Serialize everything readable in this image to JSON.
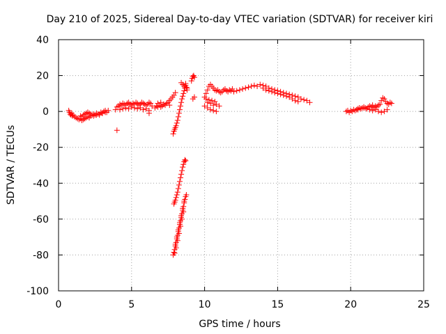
{
  "chart_data": {
    "type": "scatter",
    "title": "Day 210 of 2025, Sidereal Day-to-day VTEC variation (SDTVAR) for receiver kiri",
    "xlabel": "GPS time / hours",
    "ylabel": "SDTVAR / TECUs",
    "xlim": [
      0,
      25
    ],
    "ylim": [
      -100,
      40
    ],
    "xticks": [
      0,
      5,
      10,
      15,
      20,
      25
    ],
    "yticks": [
      40,
      20,
      0,
      -20,
      -40,
      -60,
      -80,
      -100
    ],
    "xtick_labels": [
      "0",
      "5",
      "10",
      "15",
      "20",
      "25"
    ],
    "ytick_labels": [
      "40",
      "20",
      "0",
      "-20",
      "-40",
      "-60",
      "-80",
      "-100"
    ],
    "grid": true,
    "legend": "none",
    "marker": "plus",
    "color": "#ff0000",
    "series": [
      {
        "x": [
          0.7,
          0.75,
          0.8,
          0.85,
          0.9,
          0.95,
          1.0,
          1.1,
          1.2,
          1.3,
          1.4,
          1.5,
          1.6,
          1.7,
          1.8,
          1.9,
          2.0,
          2.1,
          2.2,
          2.3,
          2.4,
          2.5,
          2.6,
          2.7,
          2.8,
          2.9,
          3.0,
          3.1,
          3.2,
          3.3,
          3.4,
          1.5,
          1.6,
          1.7,
          1.8,
          1.9,
          2.0,
          2.1,
          2.2,
          2.4,
          2.6,
          2.8,
          3.0,
          3.2,
          4.0,
          3.9,
          4.0,
          4.1,
          4.2,
          4.3,
          4.4,
          4.5,
          4.6,
          4.7,
          4.8,
          4.9,
          5.0,
          5.1,
          5.2,
          5.3,
          5.4,
          5.5,
          5.6,
          5.7,
          5.8,
          5.9,
          6.0,
          6.1,
          6.2,
          6.3,
          6.4,
          4.2,
          4.4,
          4.6,
          4.8,
          5.0,
          5.2,
          5.4,
          5.6,
          5.8,
          6.0,
          6.2,
          6.2,
          6.6,
          6.7,
          6.8,
          6.9,
          7.0,
          7.1,
          7.2,
          7.3,
          7.4,
          7.5,
          7.6,
          7.7,
          7.8,
          7.9,
          8.0,
          6.8,
          7.0,
          7.2,
          7.4,
          7.6,
          7.85,
          7.9,
          7.95,
          8.0,
          8.05,
          8.1,
          8.15,
          8.2,
          8.25,
          8.3,
          8.35,
          8.4,
          8.45,
          8.5,
          8.55,
          8.6,
          8.65,
          8.7,
          8.75,
          8.8,
          8.4,
          8.5,
          8.6,
          8.7,
          8.8,
          9.1,
          9.15,
          9.2,
          9.25,
          9.3,
          9.2,
          9.3,
          7.9,
          7.95,
          8.0,
          8.05,
          8.1,
          8.15,
          8.2,
          8.25,
          8.3,
          8.35,
          8.4,
          8.45,
          8.5,
          8.55,
          8.6,
          8.65,
          8.7,
          7.85,
          7.9,
          7.95,
          8.0,
          8.05,
          8.1,
          8.15,
          8.2,
          8.25,
          8.3,
          8.35,
          8.4,
          8.45,
          8.5,
          8.55,
          8.6,
          8.65,
          8.7,
          8.75,
          7.95,
          8.05,
          8.15,
          8.25,
          8.35,
          8.45,
          8.55,
          8.0,
          8.1,
          8.2,
          8.3,
          8.4,
          8.5,
          8.6,
          10.0,
          10.1,
          10.2,
          10.3,
          10.4,
          10.5,
          10.6,
          10.7,
          10.8,
          10.9,
          11.0,
          11.1,
          11.2,
          11.3,
          11.4,
          11.5,
          11.6,
          11.7,
          11.8,
          11.9,
          12.0,
          12.2,
          12.4,
          12.6,
          12.8,
          13.0,
          13.2,
          13.4,
          13.6,
          13.8,
          14.0,
          14.2,
          14.4,
          14.6,
          14.8,
          15.0,
          15.2,
          15.4,
          15.6,
          15.8,
          16.0,
          16.2,
          16.4,
          16.6,
          16.8,
          17.0,
          17.2,
          10.0,
          10.2,
          10.4,
          10.6,
          10.8,
          10.2,
          10.4,
          10.6,
          10.8,
          11.0,
          10.1,
          10.3,
          10.5,
          10.7,
          14.0,
          14.2,
          14.4,
          14.6,
          14.8,
          15.0,
          15.2,
          15.4,
          15.6,
          15.8,
          16.0,
          16.2,
          16.4,
          19.7,
          19.8,
          19.9,
          20.0,
          20.1,
          20.2,
          20.3,
          20.4,
          20.5,
          20.6,
          20.7,
          20.8,
          20.9,
          21.0,
          21.1,
          21.2,
          21.3,
          21.4,
          21.5,
          21.6,
          21.7,
          21.8,
          21.9,
          22.0,
          22.1,
          22.2,
          22.3,
          22.4,
          22.5,
          22.6,
          22.7,
          22.8,
          20.5,
          20.7,
          20.9,
          21.1,
          21.3,
          21.5,
          21.7,
          21.9,
          22.1,
          22.3,
          22.5
        ],
        "y": [
          0.5,
          -0.5,
          -1.5,
          -2.0,
          -1.0,
          -2.5,
          -2.0,
          -3.0,
          -3.5,
          -4.0,
          -4.5,
          -4.0,
          -5.0,
          -4.5,
          -4.0,
          -3.5,
          -3.0,
          -3.5,
          -2.5,
          -2.0,
          -1.5,
          -2.0,
          -1.0,
          -1.5,
          -2.0,
          -0.5,
          -1.0,
          0.0,
          0.5,
          -0.5,
          0.5,
          -2.5,
          -3.0,
          -2.0,
          -1.5,
          -1.0,
          -0.5,
          -1.0,
          -1.5,
          -2.5,
          -2.0,
          -1.5,
          -1.0,
          -0.5,
          -10.5,
          1.0,
          2.5,
          3.0,
          4.0,
          3.5,
          4.5,
          4.0,
          3.5,
          4.5,
          5.0,
          4.0,
          3.5,
          4.5,
          4.0,
          5.0,
          4.5,
          3.5,
          4.0,
          5.0,
          4.5,
          4.0,
          3.5,
          4.0,
          5.0,
          4.5,
          3.0,
          1.0,
          1.5,
          2.0,
          1.5,
          2.5,
          2.0,
          1.5,
          2.0,
          1.0,
          1.5,
          0.5,
          -1.0,
          2.0,
          3.0,
          2.5,
          3.5,
          2.5,
          3.0,
          4.0,
          3.5,
          4.5,
          5.0,
          6.0,
          7.0,
          8.0,
          9.0,
          10.5,
          4.5,
          5.0,
          4.0,
          4.5,
          3.5,
          -12.5,
          -11.0,
          -10.0,
          -9.0,
          -8.0,
          -6.5,
          -5.0,
          -3.0,
          -1.0,
          1.0,
          3.0,
          5.0,
          7.0,
          8.5,
          10.0,
          11.5,
          13.0,
          14.5,
          13.5,
          12.0,
          16.0,
          15.0,
          14.0,
          15.5,
          13.0,
          17.0,
          18.5,
          19.5,
          20.0,
          19.0,
          7.0,
          8.0,
          -51.5,
          -50.5,
          -49.5,
          -48.0,
          -46.5,
          -45.0,
          -43.0,
          -41.0,
          -39.0,
          -37.0,
          -35.0,
          -33.0,
          -31.0,
          -29.5,
          -28.0,
          -27.0,
          -27.5,
          -80.0,
          -78.5,
          -77.0,
          -75.0,
          -73.0,
          -71.0,
          -69.0,
          -67.0,
          -65.0,
          -63.0,
          -61.0,
          -59.0,
          -57.0,
          -55.0,
          -53.0,
          -51.0,
          -49.0,
          -47.5,
          -46.5,
          -79.0,
          -76.0,
          -72.0,
          -68.0,
          -64.0,
          -60.0,
          -56.0,
          -74.0,
          -70.0,
          -66.0,
          -62.0,
          -58.0,
          -54.0,
          -50.0,
          8.0,
          10.0,
          12.0,
          14.0,
          15.0,
          14.0,
          13.0,
          12.0,
          11.5,
          12.0,
          11.0,
          10.5,
          11.0,
          12.0,
          12.5,
          11.5,
          11.0,
          12.0,
          11.5,
          12.5,
          11.0,
          11.5,
          12.0,
          12.5,
          13.0,
          13.5,
          14.0,
          14.5,
          14.0,
          15.0,
          14.5,
          14.0,
          13.0,
          12.5,
          12.0,
          11.5,
          11.0,
          10.5,
          10.0,
          9.5,
          9.0,
          8.5,
          8.0,
          7.0,
          6.5,
          6.0,
          5.0,
          3.0,
          2.0,
          1.0,
          0.5,
          0.0,
          5.0,
          4.5,
          3.5,
          4.0,
          3.0,
          7.0,
          6.5,
          6.0,
          5.5,
          13.0,
          12.0,
          11.5,
          11.0,
          10.5,
          10.0,
          9.5,
          9.0,
          8.5,
          8.0,
          7.0,
          6.0,
          5.5,
          0.0,
          0.5,
          -0.5,
          0.5,
          0.0,
          1.0,
          0.5,
          1.0,
          1.5,
          2.0,
          1.5,
          2.0,
          2.5,
          2.0,
          1.5,
          2.5,
          3.0,
          2.5,
          3.5,
          2.0,
          3.0,
          2.5,
          3.5,
          4.0,
          6.0,
          7.5,
          7.0,
          5.5,
          4.5,
          4.0,
          5.0,
          4.5,
          1.0,
          1.5,
          2.0,
          1.5,
          1.0,
          0.5,
          1.0,
          0.0,
          -0.5,
          0.0,
          1.0
        ]
      }
    ]
  }
}
